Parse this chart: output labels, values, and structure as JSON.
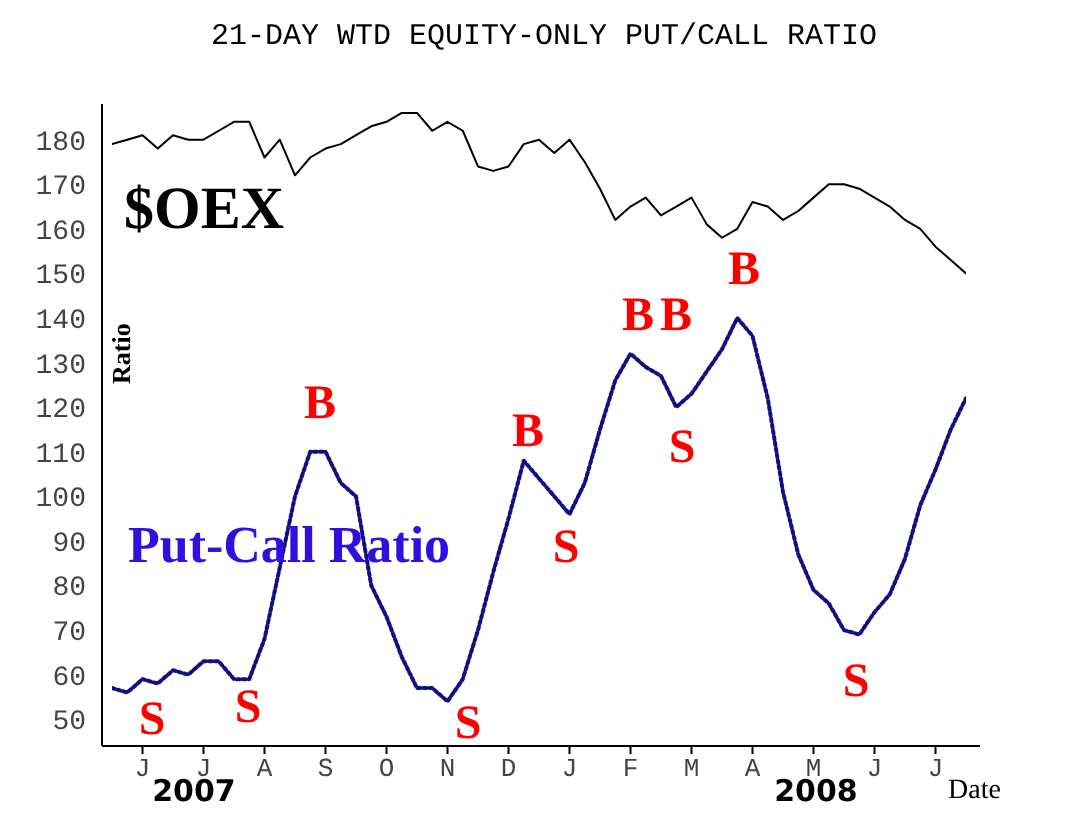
{
  "chart_data": {
    "type": "line",
    "title": "21-DAY WTD EQUITY-ONLY PUT/CALL RATIO",
    "xlabel": "Date",
    "ylabel": "Ratio",
    "categories": [
      null,
      null,
      "J",
      null,
      null,
      null,
      "J",
      null,
      null,
      null,
      "A",
      null,
      null,
      null,
      "S",
      null,
      null,
      null,
      "O",
      null,
      null,
      null,
      "N",
      null,
      null,
      null,
      "D",
      null,
      null,
      null,
      "J",
      null,
      null,
      null,
      "F",
      null,
      null,
      null,
      "M",
      null,
      null,
      null,
      "A",
      null,
      null,
      null,
      "M",
      null,
      null,
      null,
      "J",
      null,
      null,
      null,
      "J",
      null,
      null
    ],
    "ylim": [
      44,
      188
    ],
    "yticks": [
      50,
      60,
      70,
      80,
      90,
      100,
      110,
      120,
      130,
      140,
      150,
      160,
      170,
      180
    ],
    "grid": false,
    "legend": false,
    "series": [
      {
        "name": "$OEX",
        "color": "#000000",
        "line_style": "solid",
        "values": [
          179,
          180,
          181,
          178,
          181,
          180,
          180,
          182,
          184,
          184,
          176,
          180,
          172,
          176,
          178,
          179,
          181,
          183,
          184,
          186,
          186,
          182,
          184,
          182,
          174,
          173,
          174,
          179,
          180,
          177,
          180,
          175,
          169,
          162,
          165,
          167,
          163,
          165,
          167,
          161,
          158,
          160,
          166,
          165,
          162,
          164,
          167,
          170,
          170,
          169,
          167,
          165,
          162,
          160,
          156,
          153,
          150
        ]
      },
      {
        "name": "Put-Call Ratio",
        "color": "#101080",
        "line_style": "dotted",
        "values": [
          57,
          56,
          59,
          58,
          61,
          60,
          63,
          63,
          59,
          59,
          68,
          84,
          100,
          110,
          110,
          103,
          100,
          80,
          73,
          64,
          57,
          57,
          54,
          59,
          70,
          83,
          95,
          108,
          104,
          100,
          96,
          103,
          115,
          126,
          132,
          129,
          127,
          120,
          123,
          128,
          133,
          140,
          136,
          122,
          101,
          87,
          79,
          76,
          70,
          69,
          74,
          78,
          86,
          98,
          106,
          115,
          122
        ]
      }
    ],
    "annotations": [
      "B",
      "S",
      "S",
      "S",
      "B",
      "S",
      "B",
      "B",
      "S",
      "B",
      "S",
      "2007",
      "2008"
    ]
  }
}
